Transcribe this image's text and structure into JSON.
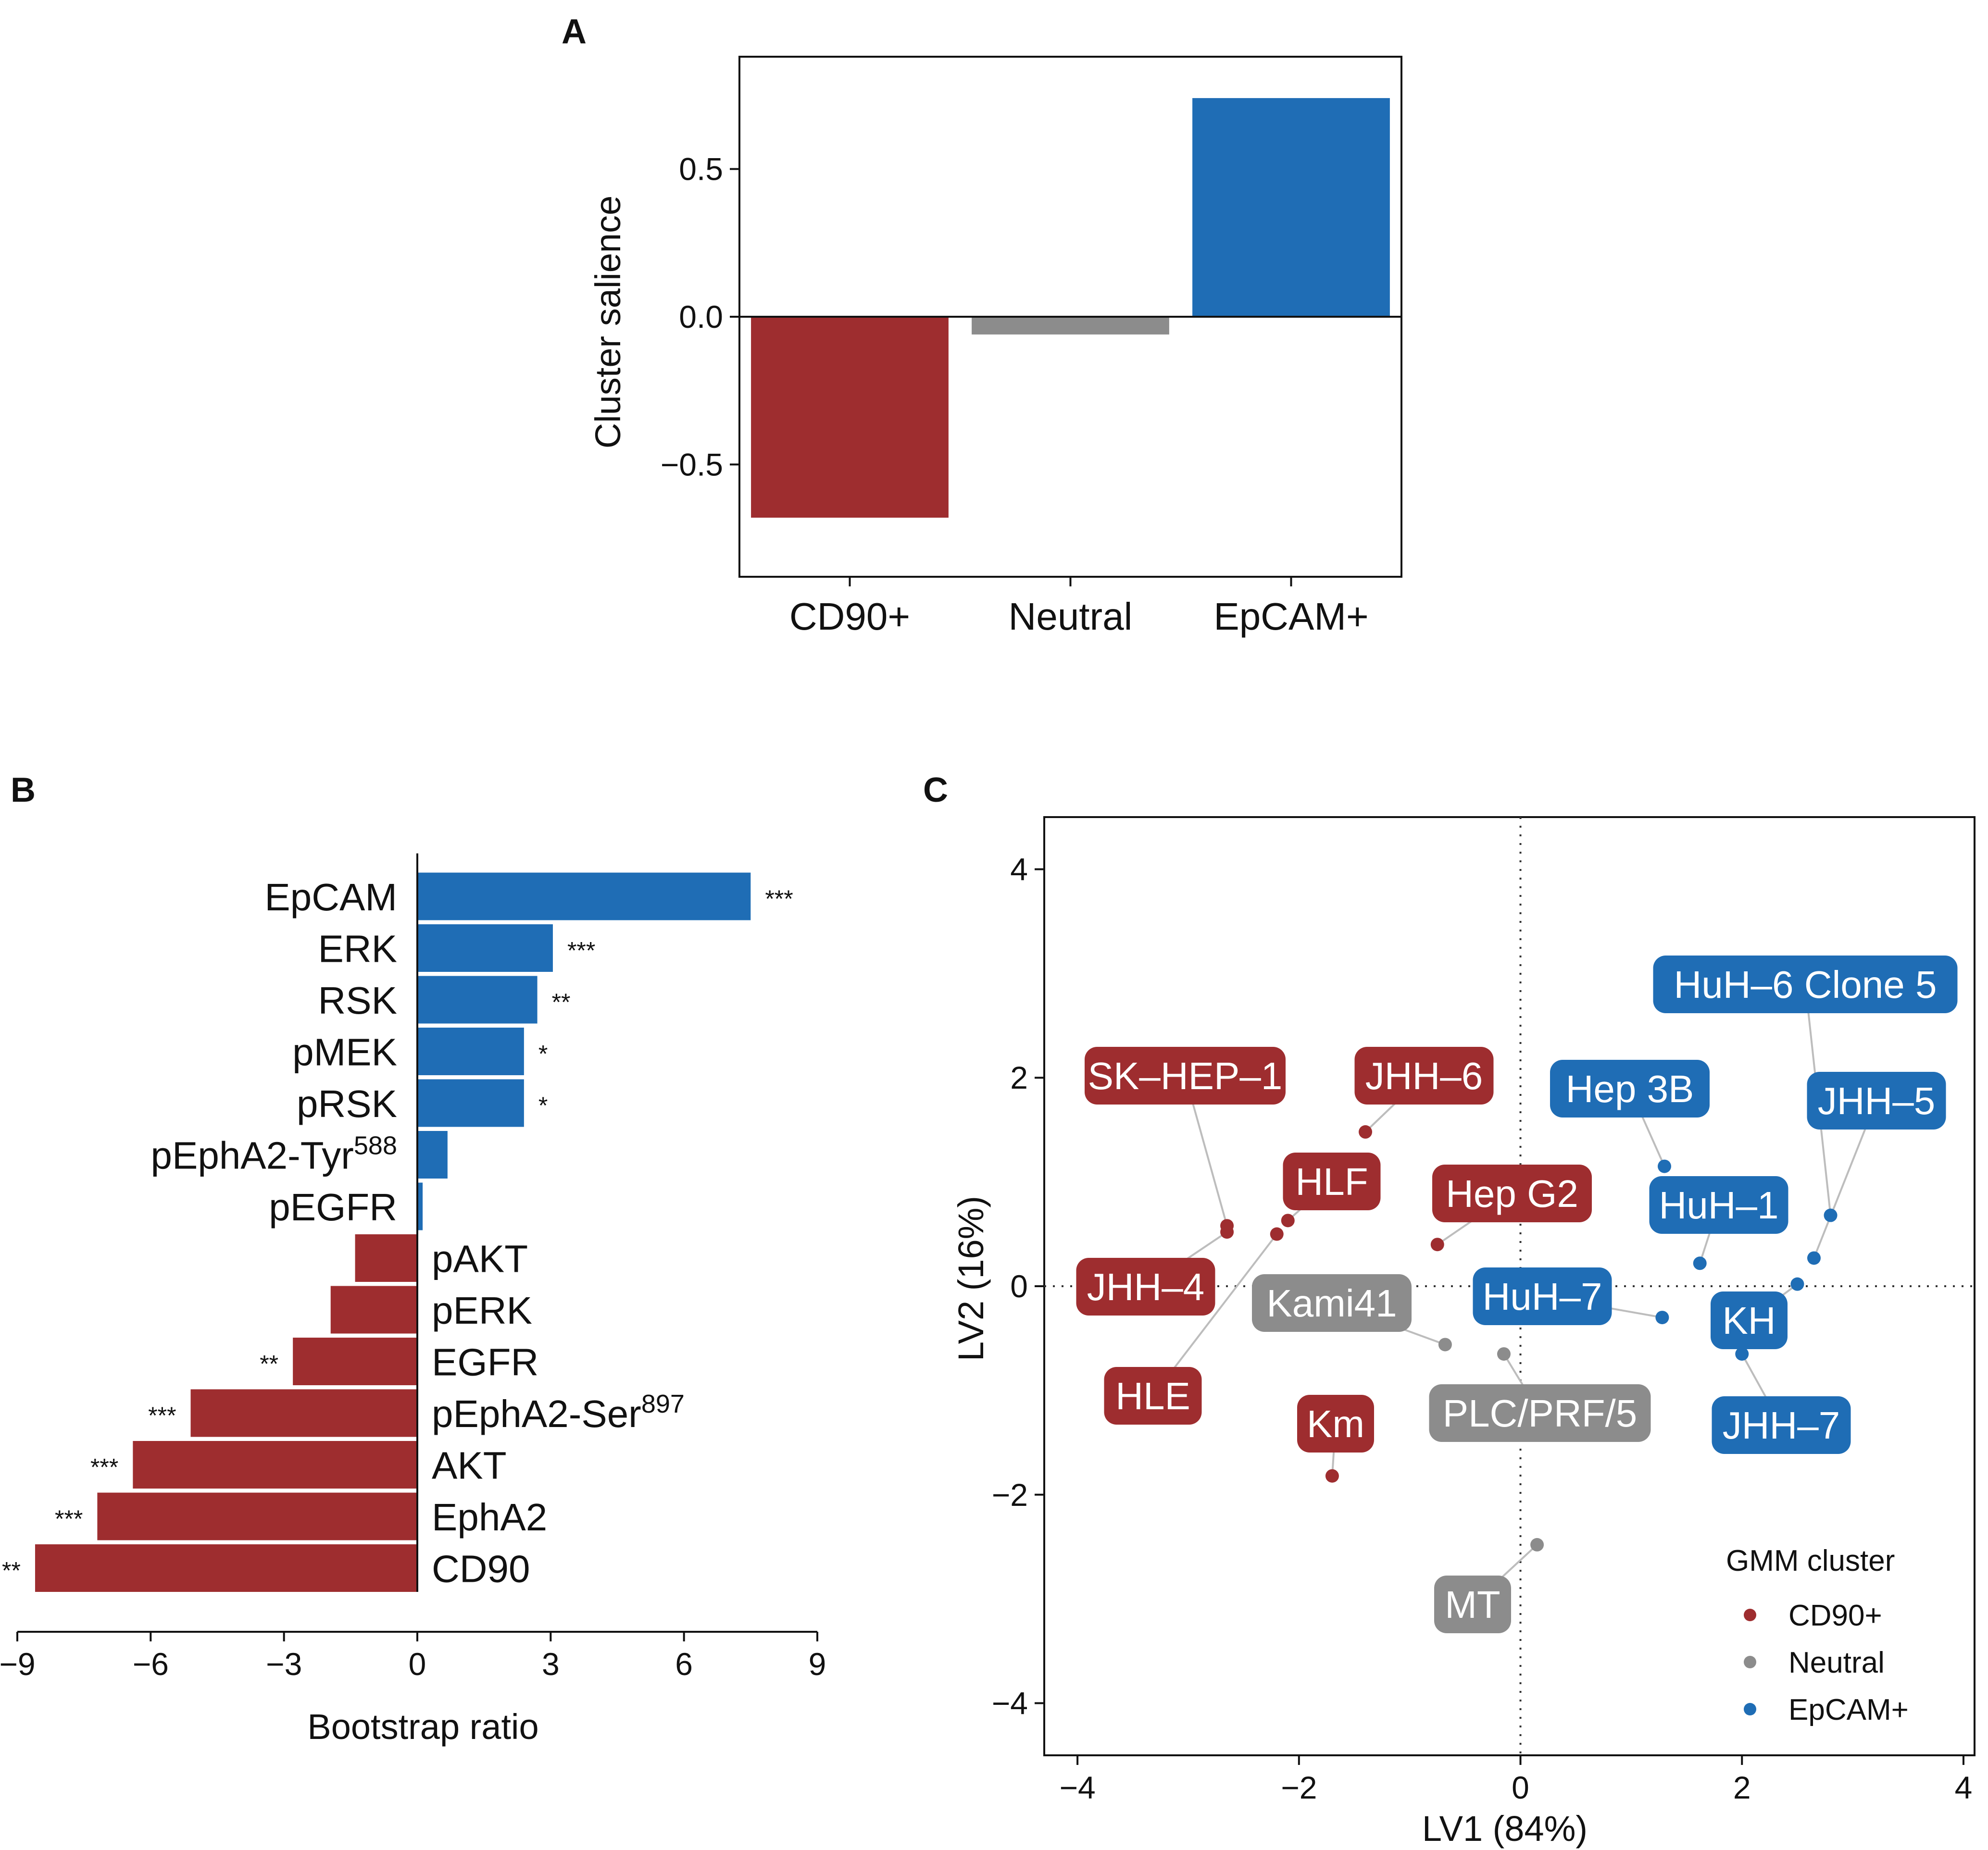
{
  "colors": {
    "CD90+": "#9e2d2f",
    "Neutral": "#8c8c8c",
    "EpCAM+": "#1f6db5"
  },
  "panels": {
    "A": "A",
    "B": "B",
    "C": "C"
  },
  "chart_data": [
    {
      "type": "bar",
      "panel": "A",
      "ylabel": "Cluster salience",
      "categories": [
        "CD90+",
        "Neutral",
        "EpCAM+"
      ],
      "values": [
        -0.68,
        -0.06,
        0.74
      ],
      "ylim": [
        -0.88,
        0.88
      ],
      "yticks": [
        -0.5,
        0.0,
        0.5
      ],
      "ytick_labels": [
        "−0.5",
        "0.0",
        "0.5"
      ],
      "grid": false
    },
    {
      "type": "bar",
      "orientation": "horizontal",
      "panel": "B",
      "xlabel": "Bootstrap ratio",
      "xlim": [
        -9,
        9
      ],
      "xticks": [
        -9,
        -6,
        -3,
        0,
        3,
        6,
        9
      ],
      "xtick_labels": [
        "−9",
        "−6",
        "−3",
        "0",
        "3",
        "6",
        "9"
      ],
      "bars": [
        {
          "label": "EpCAM",
          "value": 7.5,
          "sig": "***",
          "cluster": "EpCAM+"
        },
        {
          "label": "ERK",
          "value": 3.05,
          "sig": "***",
          "cluster": "EpCAM+"
        },
        {
          "label": "RSK",
          "value": 2.7,
          "sig": "**",
          "cluster": "EpCAM+"
        },
        {
          "label": "pMEK",
          "value": 2.4,
          "sig": "*",
          "cluster": "EpCAM+"
        },
        {
          "label": "pRSK",
          "value": 2.4,
          "sig": "*",
          "cluster": "EpCAM+"
        },
        {
          "label": "pEphA2-Tyr",
          "sup": "588",
          "value": 0.68,
          "sig": "",
          "cluster": "EpCAM+"
        },
        {
          "label": "pEGFR",
          "value": 0.12,
          "sig": "",
          "cluster": "EpCAM+"
        },
        {
          "label": "pAKT",
          "value": -1.4,
          "sig": "",
          "cluster": "CD90+"
        },
        {
          "label": "pERK",
          "value": -1.95,
          "sig": "",
          "cluster": "CD90+"
        },
        {
          "label": "EGFR",
          "value": -2.8,
          "sig": "**",
          "cluster": "CD90+"
        },
        {
          "label": "pEphA2-Ser",
          "sup": "897",
          "value": -5.1,
          "sig": "***",
          "cluster": "CD90+"
        },
        {
          "label": "AKT",
          "value": -6.4,
          "sig": "***",
          "cluster": "CD90+"
        },
        {
          "label": "EphA2",
          "value": -7.2,
          "sig": "***",
          "cluster": "CD90+"
        },
        {
          "label": "CD90",
          "value": -8.6,
          "sig": "**",
          "cluster": "CD90+"
        }
      ],
      "grid": false
    },
    {
      "type": "scatter",
      "panel": "C",
      "xlabel": "LV1 (84%)",
      "ylabel": "LV2 (16%)",
      "xlim": [
        -4.3,
        4.1
      ],
      "ylim": [
        -4.5,
        4.5
      ],
      "xticks": [
        -4,
        -2,
        0,
        2,
        4
      ],
      "xtick_labels": [
        "−4",
        "−2",
        "0",
        "2",
        "4"
      ],
      "yticks": [
        -4,
        -2,
        0,
        2,
        4
      ],
      "ytick_labels": [
        "−4",
        "−2",
        "0",
        "2",
        "4"
      ],
      "reference_lines": "dotted at x=0 and y=0",
      "legend": {
        "title": "GMM cluster",
        "position": "bottom-right",
        "entries": [
          "CD90+",
          "Neutral",
          "EpCAM+"
        ]
      },
      "points": [
        {
          "label": "SK–HEP–1",
          "x": -2.65,
          "y": 0.58,
          "cluster": "CD90+"
        },
        {
          "label": "JHH–4",
          "x": -2.65,
          "y": 0.52,
          "cluster": "CD90+"
        },
        {
          "label": "HLF",
          "x": -2.1,
          "y": 0.63,
          "cluster": "CD90+"
        },
        {
          "label": "HLE",
          "x": -2.2,
          "y": 0.5,
          "cluster": "CD90+"
        },
        {
          "label": "JHH–6",
          "x": -1.4,
          "y": 1.48,
          "cluster": "CD90+"
        },
        {
          "label": "Hep G2",
          "x": -0.75,
          "y": 0.4,
          "cluster": "CD90+"
        },
        {
          "label": "Km",
          "x": -1.7,
          "y": -1.82,
          "cluster": "CD90+"
        },
        {
          "label": "Kami41",
          "x": -0.68,
          "y": -0.56,
          "cluster": "Neutral"
        },
        {
          "label": "PLC/PRF/5",
          "x": -0.15,
          "y": -0.65,
          "cluster": "Neutral"
        },
        {
          "label": "MT",
          "x": 0.15,
          "y": -2.48,
          "cluster": "Neutral"
        },
        {
          "label": "HuH–6 Clone 5",
          "x": 2.8,
          "y": 0.68,
          "cluster": "EpCAM+"
        },
        {
          "label": "Hep 3B",
          "x": 1.3,
          "y": 1.15,
          "cluster": "EpCAM+"
        },
        {
          "label": "JHH–5",
          "x": 2.65,
          "y": 0.27,
          "cluster": "EpCAM+"
        },
        {
          "label": "HuH–1",
          "x": 1.62,
          "y": 0.22,
          "cluster": "EpCAM+"
        },
        {
          "label": "HuH–7",
          "x": 1.28,
          "y": -0.3,
          "cluster": "EpCAM+"
        },
        {
          "label": "KH",
          "x": 2.5,
          "y": 0.02,
          "cluster": "EpCAM+"
        },
        {
          "label": "JHH–7",
          "x": 2.0,
          "y": -0.65,
          "cluster": "EpCAM+"
        }
      ],
      "grid": false
    }
  ]
}
